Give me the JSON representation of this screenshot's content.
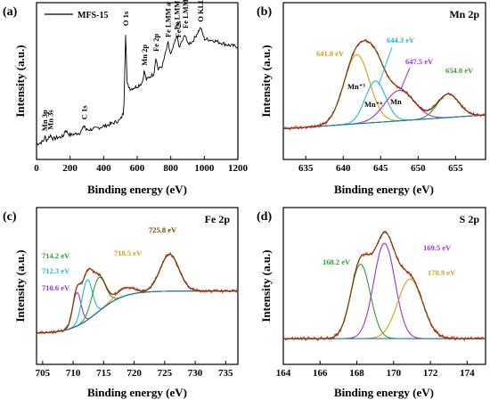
{
  "colors": {
    "raw": "#d62728",
    "envelope": "#7b3f00",
    "background": "#1f77b4",
    "gold": "#d4a017",
    "cyan": "#17becf",
    "purple": "#9b30d9",
    "green": "#2ca02c",
    "blue": "#1f4fd1",
    "black": "#000000"
  },
  "chart_data": [
    {
      "panel": "(a)",
      "type": "line",
      "xlabel": "Binding energy (eV)",
      "ylabel": "Intensity (a.u.)",
      "xlim": [
        0,
        1200
      ],
      "xticks": [
        "0",
        "200",
        "400",
        "600",
        "800",
        "1000",
        "1200"
      ],
      "legend": "MFS-15",
      "legend_placement": "top-left",
      "annotations": [
        {
          "text": "Mn 3p",
          "x": 49
        },
        {
          "text": "Mn 3s",
          "x": 83
        },
        {
          "text": "C 1s",
          "x": 285
        },
        {
          "text": "O 1s",
          "x": 531
        },
        {
          "text": "Mn 2p",
          "x": 642
        },
        {
          "text": "Fe 2p",
          "x": 711
        },
        {
          "text": "Fe 2s",
          "x": 845
        },
        {
          "text": "Fe LMM a",
          "x": 784
        },
        {
          "text": "Fe LMM b",
          "x": 837
        },
        {
          "text": "Fe LMM c",
          "x": 888
        },
        {
          "text": "O KLL",
          "x": 978
        }
      ],
      "series": [
        {
          "name": "MFS-15",
          "x": [
            0,
            20,
            40,
            49,
            60,
            83,
            100,
            120,
            160,
            170,
            200,
            230,
            260,
            280,
            285,
            295,
            350,
            400,
            450,
            500,
            520,
            531,
            540,
            560,
            600,
            630,
            642,
            655,
            670,
            700,
            711,
            725,
            750,
            784,
            800,
            837,
            850,
            888,
            900,
            930,
            978,
            1000,
            1050,
            1100,
            1150,
            1200
          ],
          "y": [
            0.05,
            0.06,
            0.07,
            0.11,
            0.08,
            0.12,
            0.09,
            0.1,
            0.11,
            0.16,
            0.12,
            0.13,
            0.14,
            0.18,
            0.2,
            0.16,
            0.17,
            0.19,
            0.21,
            0.24,
            0.3,
            0.93,
            0.52,
            0.48,
            0.5,
            0.53,
            0.62,
            0.55,
            0.57,
            0.6,
            0.73,
            0.63,
            0.66,
            0.84,
            0.74,
            0.9,
            0.8,
            0.91,
            0.83,
            0.85,
            0.96,
            0.87,
            0.86,
            0.84,
            0.82,
            0.81
          ]
        }
      ]
    },
    {
      "panel": "(b)",
      "type": "line",
      "title": "Mn 2p",
      "xlabel": "Binding energy (eV)",
      "ylabel": "Intensity (a.u.)",
      "xlim": [
        632,
        659
      ],
      "xticks": [
        "635",
        "640",
        "645",
        "650",
        "655"
      ],
      "annotations": [
        {
          "text": "641.8 eV",
          "x": 641.8,
          "color": "gold"
        },
        {
          "text": "644.3 eV",
          "x": 644.3,
          "color": "cyan"
        },
        {
          "text": "647.5 eV",
          "x": 647.5,
          "color": "purple"
        },
        {
          "text": "654.0 eV",
          "x": 654.0,
          "color": "green"
        },
        {
          "text": "Mn⁺³",
          "x": 641.8
        },
        {
          "text": "Mn⁺⁴",
          "x": 644.3
        },
        {
          "text": "Mn",
          "x": 647.5
        }
      ],
      "background": {
        "left": 0.08,
        "right": 0.18
      },
      "peaks": [
        {
          "label": "641.8 eV",
          "center": 641.8,
          "height": 0.5,
          "fwhm": 4.0,
          "color": "gold"
        },
        {
          "label": "644.3 eV",
          "center": 644.3,
          "height": 0.3,
          "fwhm": 3.2,
          "color": "cyan"
        },
        {
          "label": "647.5 eV",
          "center": 647.5,
          "height": 0.22,
          "fwhm": 4.6,
          "color": "purple"
        },
        {
          "label": "654.0 eV",
          "center": 654.0,
          "height": 0.17,
          "fwhm": 3.4,
          "color": "green"
        }
      ]
    },
    {
      "panel": "(c)",
      "type": "line",
      "title": "Fe 2p",
      "xlabel": "Binding energy (eV)",
      "ylabel": "Intensity (a.u.)",
      "xlim": [
        704,
        737
      ],
      "xticks": [
        "705",
        "710",
        "715",
        "720",
        "725",
        "730",
        "735"
      ],
      "annotations": [
        {
          "text": "714.2 eV",
          "x": 714.2,
          "color": "green"
        },
        {
          "text": "712.3 eV",
          "x": 712.3,
          "color": "cyan"
        },
        {
          "text": "710.6 eV",
          "x": 710.6,
          "color": "purple"
        },
        {
          "text": "718.5 eV",
          "x": 718.5,
          "color": "gold"
        },
        {
          "text": "725.8 eV",
          "x": 725.8,
          "color": "envelope"
        }
      ],
      "background": {
        "left": 0.1,
        "right": 0.48,
        "step_center": 714,
        "step_width": 2.2
      },
      "peaks": [
        {
          "label": "710.6 eV",
          "center": 710.6,
          "height": 0.3,
          "fwhm": 1.6,
          "color": "purple"
        },
        {
          "label": "712.3 eV",
          "center": 712.3,
          "height": 0.36,
          "fwhm": 2.0,
          "color": "cyan"
        },
        {
          "label": "714.2 eV",
          "center": 714.2,
          "height": 0.3,
          "fwhm": 2.6,
          "color": "green"
        },
        {
          "label": "718.5 eV",
          "center": 718.5,
          "height": 0.07,
          "fwhm": 3.5,
          "color": "gold"
        },
        {
          "label": "725.8 eV",
          "center": 725.8,
          "height": 0.33,
          "fwhm": 3.6,
          "color": "envelope"
        }
      ]
    },
    {
      "panel": "(d)",
      "type": "line",
      "title": "S 2p",
      "xlabel": "Binding energy (eV)",
      "ylabel": "Intensity (a.u.)",
      "xlim": [
        164,
        175
      ],
      "xticks": [
        "164",
        "166",
        "168",
        "170",
        "172",
        "174"
      ],
      "annotations": [
        {
          "text": "168.2 eV",
          "x": 168.2,
          "color": "green"
        },
        {
          "text": "169.5 eV",
          "x": 169.5,
          "color": "purple"
        },
        {
          "text": "170.9 eV",
          "x": 170.9,
          "color": "gold"
        }
      ],
      "background": {
        "left": 0.05,
        "right": 0.05
      },
      "peaks": [
        {
          "label": "168.2 eV",
          "center": 168.2,
          "height": 0.6,
          "fwhm": 1.25,
          "color": "green"
        },
        {
          "label": "169.5 eV",
          "center": 169.5,
          "height": 0.77,
          "fwhm": 1.35,
          "color": "purple"
        },
        {
          "label": "170.9 eV",
          "center": 170.9,
          "height": 0.48,
          "fwhm": 1.6,
          "color": "gold"
        }
      ]
    }
  ]
}
